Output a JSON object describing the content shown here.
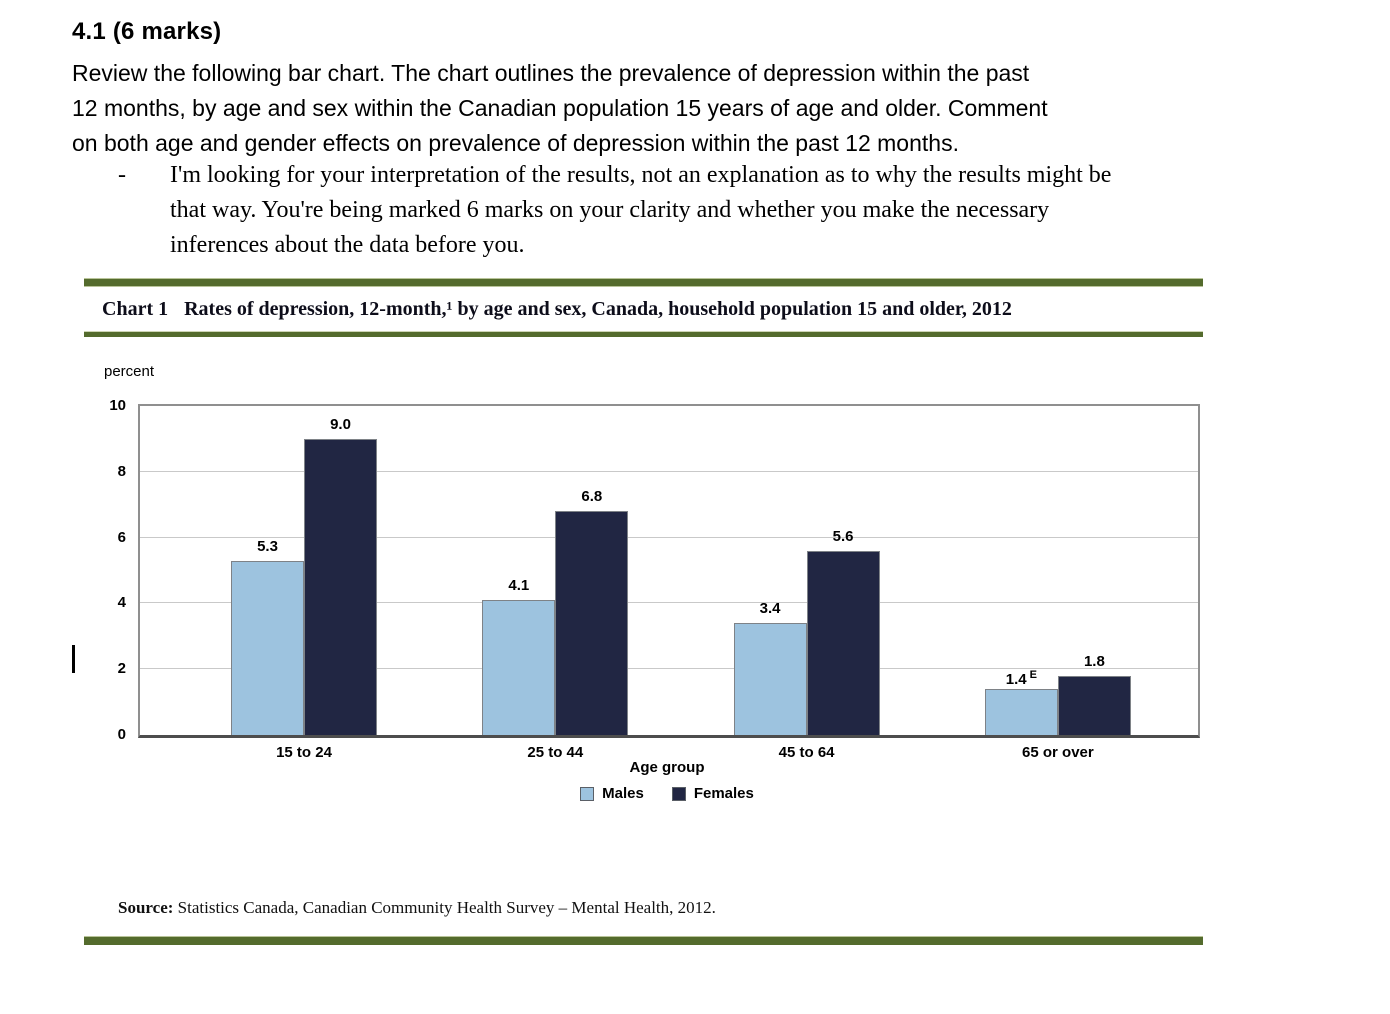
{
  "page": {
    "heading": "4.1 (6 marks)",
    "paragraph_lines": [
      "Review the following bar chart. The chart outlines the prevalence of depression within the past",
      "12 months, by age and sex within the Canadian population 15 years of age and older.  Comment",
      "on both age and gender effects on prevalence of depression within the past 12 months."
    ],
    "bullet_marker": "-",
    "bullet_lines": [
      "I'm looking for your interpretation of the results, not an explanation as to why the results might be",
      "that way. You're being marked 6 marks on your clarity and whether you make the necessary",
      "inferences about the data before you."
    ]
  },
  "chart": {
    "title_prefix": "Chart 1",
    "title_text": "Rates of depression, 12-month,¹ by age and sex, Canada, household population 15 and older, 2012",
    "source_label": "Source:",
    "source_text": "Statistics Canada, Canadian Community Health Survey – Mental Health, 2012.",
    "accent_green": "#546b2d"
  },
  "chart_data": {
    "type": "bar",
    "title": "Chart 1  Rates of depression, 12-month,¹ by age and sex, Canada, household population 15 and older, 2012",
    "ylabel": "percent",
    "xlabel": "Age group",
    "ylim": [
      0,
      10
    ],
    "yticks": [
      0,
      2,
      4,
      6,
      8,
      10
    ],
    "grid": "horizontal",
    "legend_position": "bottom",
    "categories": [
      "15 to 24",
      "25 to 44",
      "45 to 64",
      "65 or over"
    ],
    "series": [
      {
        "name": "Males",
        "color": "#9dc3df",
        "values": [
          5.3,
          4.1,
          3.4,
          1.4
        ],
        "value_labels": [
          "5.3",
          "4.1",
          "3.4",
          "1.4"
        ],
        "flags": [
          "",
          "",
          "",
          "E"
        ]
      },
      {
        "name": "Females",
        "color": "#212643",
        "values": [
          9.0,
          6.8,
          5.6,
          1.8
        ],
        "value_labels": [
          "9.0",
          "6.8",
          "5.6",
          "1.8"
        ],
        "flags": [
          "",
          "",
          "",
          ""
        ]
      }
    ]
  }
}
